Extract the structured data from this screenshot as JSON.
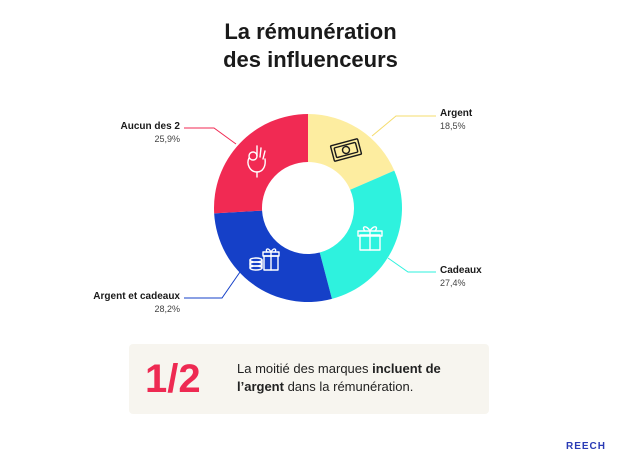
{
  "title": {
    "line1": "La rémunération",
    "line2": "des influenceurs"
  },
  "chart_data": {
    "type": "pie",
    "donut": true,
    "categories": [
      "Argent",
      "Cadeaux",
      "Argent et cadeaux",
      "Aucun des 2"
    ],
    "values": [
      18.5,
      27.4,
      28.2,
      25.9
    ],
    "value_labels": [
      "18,5%",
      "27,4%",
      "28,2%",
      "25,9%"
    ],
    "colors": [
      "#fdeda0",
      "#2ef2de",
      "#1540c8",
      "#f12a53"
    ],
    "icons": [
      "banknote-icon",
      "gift-icon",
      "coins-and-gift-icon",
      "ok-hand-icon"
    ],
    "line_colors": [
      "#f5dc6e",
      "#2ef2de",
      "#1540c8",
      "#f12a53"
    ],
    "legend": "none"
  },
  "callout": {
    "big": "1/2",
    "text_pre": "La moitié des marques ",
    "text_bold": "incluent de l’argent",
    "text_post": " dans la rémunération."
  },
  "brand": "REECH"
}
